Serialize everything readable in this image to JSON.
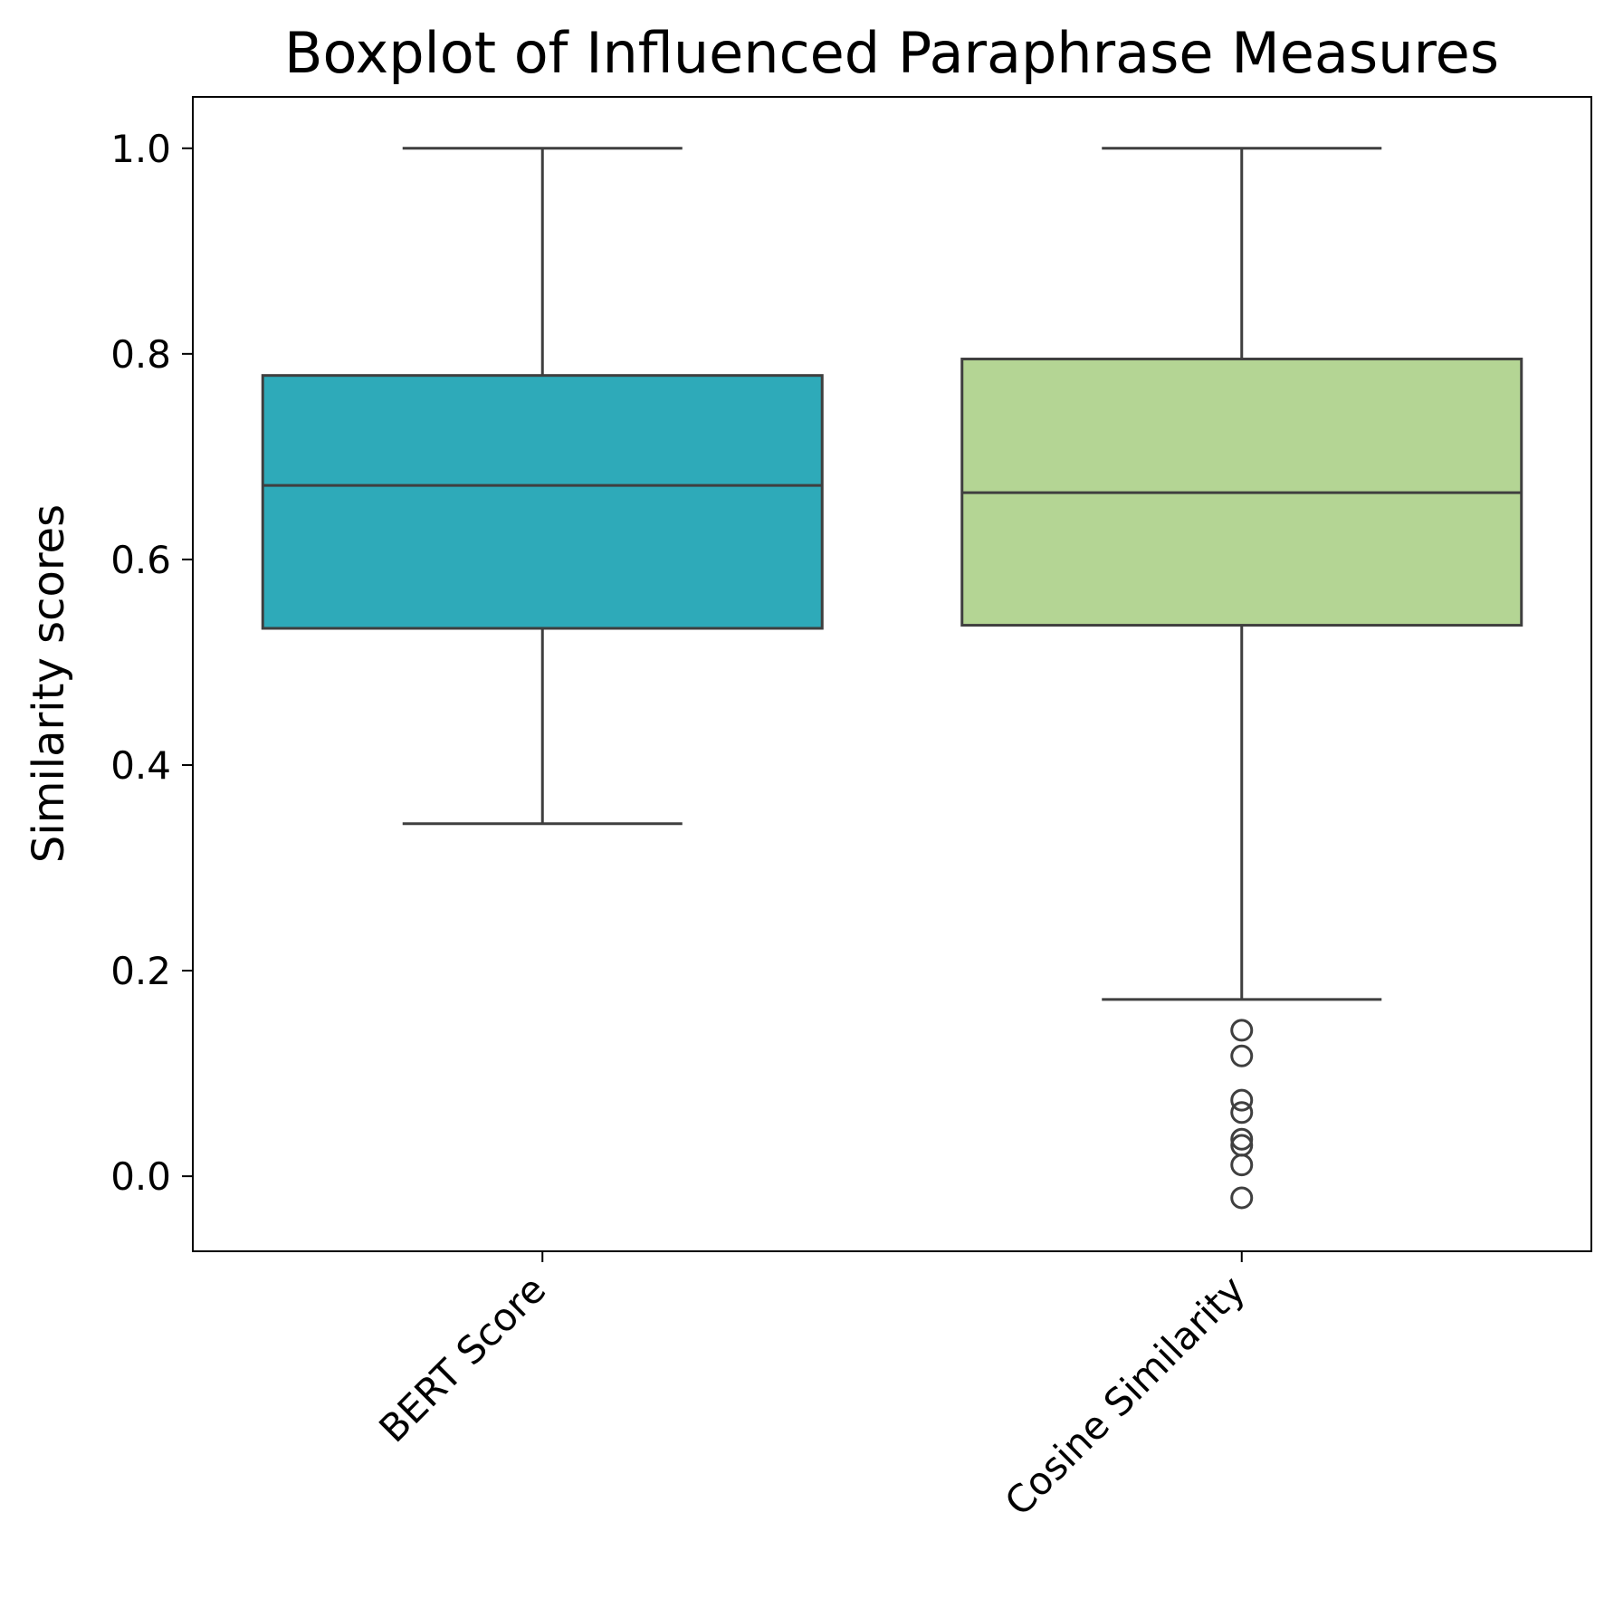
{
  "chart_data": {
    "type": "boxplot",
    "title": "Boxplot of Influenced Paraphrase Measures",
    "xlabel": "",
    "ylabel": "Similarity scores",
    "ylim": [
      -0.073,
      1.05
    ],
    "yticks": [
      "0.0",
      "0.2",
      "0.4",
      "0.6",
      "0.8",
      "1.0"
    ],
    "ytick_values": [
      0.0,
      0.2,
      0.4,
      0.6,
      0.8,
      1.0
    ],
    "grid": false,
    "legend": "none",
    "categories": [
      "BERT Score",
      "Cosine Similarity"
    ],
    "boxes": [
      {
        "category": "BERT Score",
        "whisker_low": 0.343,
        "q1": 0.533,
        "median": 0.672,
        "q3": 0.779,
        "whisker_high": 1.0,
        "outliers": [],
        "color": "#2eaab9"
      },
      {
        "category": "Cosine Similarity",
        "whisker_low": 0.172,
        "q1": 0.536,
        "median": 0.665,
        "q3": 0.795,
        "whisker_high": 1.0,
        "outliers": [
          0.142,
          0.117,
          0.074,
          0.062,
          0.036,
          0.03,
          0.011,
          -0.021
        ],
        "color": "#b4d594"
      }
    ],
    "line_color": "#3f3f3f"
  }
}
